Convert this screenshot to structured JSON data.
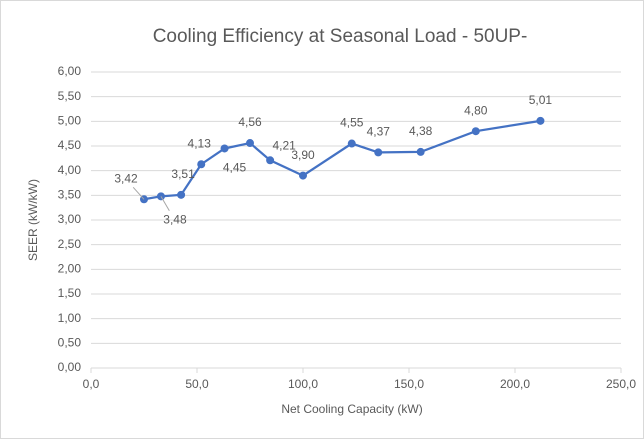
{
  "chart_data": {
    "type": "line",
    "title": "Cooling Efficiency at Seasonal Load - 50UP-",
    "x_label": "Net Cooling Capacity (kW)",
    "y_label": "SEER (kW/kW)",
    "series": [
      {
        "name": "SEER",
        "color": "#4472c4",
        "x": [
          25,
          33,
          42.5,
          52,
          63,
          75,
          84.5,
          100,
          123,
          135.5,
          155.5,
          181.5,
          212
        ],
        "values": [
          3.42,
          3.48,
          3.51,
          4.13,
          4.45,
          4.56,
          4.21,
          3.9,
          4.55,
          4.37,
          4.38,
          4.8,
          5.01
        ],
        "value_labels": [
          "3,42",
          "3,48",
          "3,51",
          "4,13",
          "4,45",
          "4,56",
          "4,21",
          "3,90",
          "4,55",
          "4,37",
          "4,38",
          "4,80",
          "5,01"
        ]
      }
    ],
    "xlim": [
      0,
      250
    ],
    "xticks": [
      {
        "value": 0,
        "label": "0,0"
      },
      {
        "value": 50,
        "label": "50,0"
      },
      {
        "value": 100,
        "label": "100,0"
      },
      {
        "value": 150,
        "label": "150,0"
      },
      {
        "value": 200,
        "label": "200,0"
      },
      {
        "value": 250,
        "label": "250,0"
      }
    ],
    "ylim": [
      0,
      6
    ],
    "yticks": [
      {
        "value": 0,
        "label": "0,00"
      },
      {
        "value": 0.5,
        "label": "0,50"
      },
      {
        "value": 1,
        "label": "1,00"
      },
      {
        "value": 1.5,
        "label": "1,50"
      },
      {
        "value": 2,
        "label": "2,00"
      },
      {
        "value": 2.5,
        "label": "2,50"
      },
      {
        "value": 3,
        "label": "3,00"
      },
      {
        "value": 3.5,
        "label": "3,50"
      },
      {
        "value": 4,
        "label": "4,00"
      },
      {
        "value": 4.5,
        "label": "4,50"
      },
      {
        "value": 5,
        "label": "5,00"
      },
      {
        "value": 5.5,
        "label": "5,50"
      },
      {
        "value": 6,
        "label": "6,00"
      }
    ],
    "grid": true
  }
}
